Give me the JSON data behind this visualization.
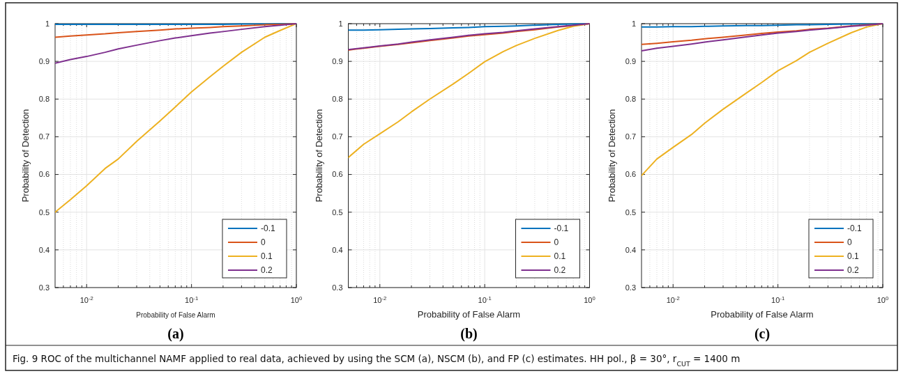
{
  "chart_data": [
    {
      "type": "line",
      "title": "(a)",
      "xlabel": "Probability of False Alarm",
      "ylabel": "Probability of Detection",
      "log": "x",
      "grid": true,
      "legend": "bottom right",
      "line_style": "solid",
      "xlim": [
        0.005,
        1
      ],
      "xticks": [
        {
          "value": 0.01,
          "label": "10$^{-2}$"
        },
        {
          "value": 0.1,
          "label": "10$^{-1}$"
        },
        {
          "value": 1,
          "label": "10$^{0}$"
        }
      ],
      "ylim": [
        0.3,
        1
      ],
      "yticks": [
        0.3,
        0.4,
        0.5,
        0.6,
        0.7,
        0.8,
        0.9,
        1
      ],
      "x": [
        0.005,
        0.007,
        0.01,
        0.015,
        0.02,
        0.03,
        0.05,
        0.07,
        0.1,
        0.15,
        0.2,
        0.3,
        0.5,
        0.7,
        1
      ],
      "series": [
        {
          "name": "-0.1",
          "color": "#0072bd",
          "values": [
            0.998,
            0.998,
            0.998,
            0.998,
            0.998,
            0.998,
            0.998,
            0.998,
            0.998,
            0.998,
            0.998,
            0.999,
            0.999,
            1,
            1
          ]
        },
        {
          "name": "0",
          "color": "#d95319",
          "values": [
            0.964,
            0.967,
            0.97,
            0.973,
            0.976,
            0.979,
            0.983,
            0.986,
            0.988,
            0.99,
            0.992,
            0.994,
            0.997,
            0.998,
            1
          ]
        },
        {
          "name": "0.1",
          "color": "#edb120",
          "values": [
            0.5,
            0.533,
            0.57,
            0.616,
            0.641,
            0.688,
            0.742,
            0.779,
            0.819,
            0.859,
            0.887,
            0.924,
            0.964,
            0.982,
            1
          ]
        },
        {
          "name": "0.2",
          "color": "#7e2f8e",
          "values": [
            0.895,
            0.905,
            0.913,
            0.924,
            0.933,
            0.943,
            0.955,
            0.962,
            0.968,
            0.975,
            0.979,
            0.985,
            0.992,
            0.996,
            1
          ]
        }
      ],
      "annotations": [
        "Fig. 9 ROC of the multichannel NAMF applied to real data, achieved by using the SCM (a), NSCM (b), and FP (c) estimates. HH pol., β = 30°, r$_{CUT}$ = 1400 m"
      ]
    },
    {
      "type": "line",
      "title": "(b)",
      "xlabel": "Probability of False Alarm",
      "ylabel": "Probability of Detection",
      "log": "x",
      "grid": true,
      "legend": "bottom right",
      "line_style": "solid",
      "xlim": [
        0.005,
        1
      ],
      "xticks": [
        {
          "value": 0.01,
          "label": "10$^{-2}$"
        },
        {
          "value": 0.1,
          "label": "10$^{-1}$"
        },
        {
          "value": 1,
          "label": "10$^{0}$"
        }
      ],
      "ylim": [
        0.3,
        1
      ],
      "yticks": [
        0.3,
        0.4,
        0.5,
        0.6,
        0.7,
        0.8,
        0.9,
        1
      ],
      "x": [
        0.005,
        0.007,
        0.01,
        0.015,
        0.02,
        0.03,
        0.05,
        0.07,
        0.1,
        0.15,
        0.2,
        0.3,
        0.5,
        0.7,
        1
      ],
      "series": [
        {
          "name": "-0.1",
          "color": "#0072bd",
          "values": [
            0.983,
            0.983,
            0.984,
            0.985,
            0.986,
            0.987,
            0.989,
            0.99,
            0.992,
            0.993,
            0.994,
            0.996,
            0.998,
            0.999,
            1
          ]
        },
        {
          "name": "0",
          "color": "#d95319",
          "values": [
            0.93,
            0.935,
            0.94,
            0.945,
            0.949,
            0.955,
            0.962,
            0.967,
            0.971,
            0.975,
            0.979,
            0.984,
            0.991,
            0.995,
            1
          ]
        },
        {
          "name": "0.1",
          "color": "#edb120",
          "values": [
            0.645,
            0.68,
            0.708,
            0.74,
            0.766,
            0.8,
            0.84,
            0.868,
            0.899,
            0.926,
            0.942,
            0.961,
            0.982,
            0.993,
            1
          ]
        },
        {
          "name": "0.2",
          "color": "#7e2f8e",
          "values": [
            0.931,
            0.936,
            0.941,
            0.946,
            0.951,
            0.957,
            0.964,
            0.969,
            0.973,
            0.977,
            0.981,
            0.986,
            0.992,
            0.996,
            1
          ]
        }
      ]
    },
    {
      "type": "line",
      "title": "(c)",
      "xlabel": "Probability of False Alarm",
      "ylabel": "Probability of Detection",
      "log": "x",
      "grid": true,
      "legend": "bottom right",
      "line_style": "solid",
      "xlim": [
        0.005,
        1
      ],
      "xticks": [
        {
          "value": 0.01,
          "label": "10$^{-2}$"
        },
        {
          "value": 0.1,
          "label": "10$^{-1}$"
        },
        {
          "value": 1,
          "label": "10$^{0}$"
        }
      ],
      "ylim": [
        0.3,
        1
      ],
      "yticks": [
        0.3,
        0.4,
        0.5,
        0.6,
        0.7,
        0.8,
        0.9,
        1
      ],
      "x": [
        0.005,
        0.007,
        0.01,
        0.015,
        0.02,
        0.03,
        0.05,
        0.07,
        0.1,
        0.15,
        0.2,
        0.3,
        0.5,
        0.7,
        1
      ],
      "series": [
        {
          "name": "-0.1",
          "color": "#0072bd",
          "values": [
            0.991,
            0.991,
            0.992,
            0.992,
            0.993,
            0.994,
            0.995,
            0.995,
            0.996,
            0.997,
            0.997,
            0.998,
            0.999,
            0.999,
            1
          ]
        },
        {
          "name": "0",
          "color": "#d95319",
          "values": [
            0.945,
            0.948,
            0.952,
            0.956,
            0.96,
            0.964,
            0.97,
            0.974,
            0.978,
            0.981,
            0.985,
            0.988,
            0.994,
            0.997,
            1
          ]
        },
        {
          "name": "0.1",
          "color": "#edb120",
          "values": [
            0.597,
            0.641,
            0.672,
            0.706,
            0.736,
            0.773,
            0.816,
            0.844,
            0.875,
            0.902,
            0.924,
            0.948,
            0.976,
            0.991,
            1
          ]
        },
        {
          "name": "0.2",
          "color": "#7e2f8e",
          "values": [
            0.928,
            0.935,
            0.94,
            0.946,
            0.951,
            0.957,
            0.965,
            0.97,
            0.975,
            0.979,
            0.983,
            0.987,
            0.993,
            0.996,
            1
          ]
        }
      ]
    }
  ]
}
